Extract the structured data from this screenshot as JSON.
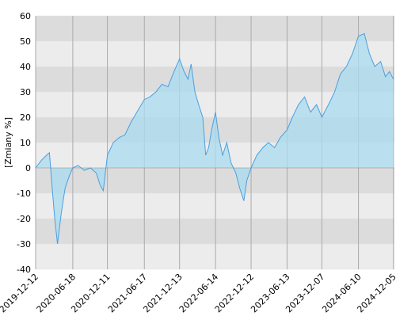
{
  "chart_data": {
    "type": "area",
    "y_label": "[Zmiany %]",
    "x": [
      "2019-12-12",
      "2020-01-10",
      "2020-02-05",
      "2020-02-20",
      "2020-03-05",
      "2020-03-18",
      "2020-04-01",
      "2020-04-20",
      "2020-05-10",
      "2020-06-01",
      "2020-06-18",
      "2020-07-15",
      "2020-08-15",
      "2020-09-15",
      "2020-10-15",
      "2020-11-05",
      "2020-11-20",
      "2020-12-11",
      "2021-01-10",
      "2021-02-10",
      "2021-03-10",
      "2021-04-10",
      "2021-05-10",
      "2021-06-17",
      "2021-07-15",
      "2021-08-15",
      "2021-09-15",
      "2021-10-15",
      "2021-11-15",
      "2021-12-13",
      "2022-01-05",
      "2022-01-25",
      "2022-02-10",
      "2022-03-01",
      "2022-03-20",
      "2022-04-10",
      "2022-04-25",
      "2022-05-10",
      "2022-05-25",
      "2022-06-14",
      "2022-07-01",
      "2022-07-20",
      "2022-08-10",
      "2022-09-01",
      "2022-09-25",
      "2022-10-15",
      "2022-11-05",
      "2022-11-20",
      "2022-12-12",
      "2023-01-10",
      "2023-02-10",
      "2023-03-10",
      "2023-04-10",
      "2023-05-10",
      "2023-06-13",
      "2023-07-10",
      "2023-08-10",
      "2023-09-10",
      "2023-10-10",
      "2023-11-10",
      "2023-12-07",
      "2024-01-10",
      "2024-02-10",
      "2024-03-10",
      "2024-04-10",
      "2024-05-10",
      "2024-06-10",
      "2024-07-10",
      "2024-08-05",
      "2024-09-01",
      "2024-10-01",
      "2024-10-25",
      "2024-11-15",
      "2024-12-05"
    ],
    "values": [
      0,
      3,
      5,
      6,
      -8,
      -20,
      -30,
      -18,
      -8,
      -3,
      0,
      1,
      -1,
      0,
      -2,
      -7,
      -9,
      5,
      10,
      12,
      13,
      18,
      22,
      27,
      28,
      30,
      33,
      32,
      38,
      43,
      38,
      35,
      41,
      30,
      25,
      20,
      5,
      8,
      15,
      22,
      12,
      5,
      10,
      2,
      -2,
      -8,
      -13,
      -5,
      0,
      5,
      8,
      10,
      8,
      12,
      15,
      20,
      25,
      28,
      22,
      25,
      20,
      25,
      30,
      37,
      40,
      45,
      52,
      53,
      45,
      40,
      42,
      36,
      38,
      35
    ],
    "xlim": [
      "2019-12-12",
      "2024-12-10"
    ],
    "xticks": [
      "2019-12-12",
      "2020-06-18",
      "2020-12-11",
      "2021-06-17",
      "2021-12-13",
      "2022-06-14",
      "2022-12-12",
      "2023-06-13",
      "2023-12-07",
      "2024-06-10",
      "2024-12-05"
    ],
    "ylim": [
      -40,
      60
    ],
    "yticks": [
      -40,
      -30,
      -20,
      -10,
      0,
      10,
      20,
      30,
      40,
      50,
      60
    ],
    "line_color": "#4a9fe0",
    "fill_color": "#a9dcf0",
    "grid": true
  }
}
